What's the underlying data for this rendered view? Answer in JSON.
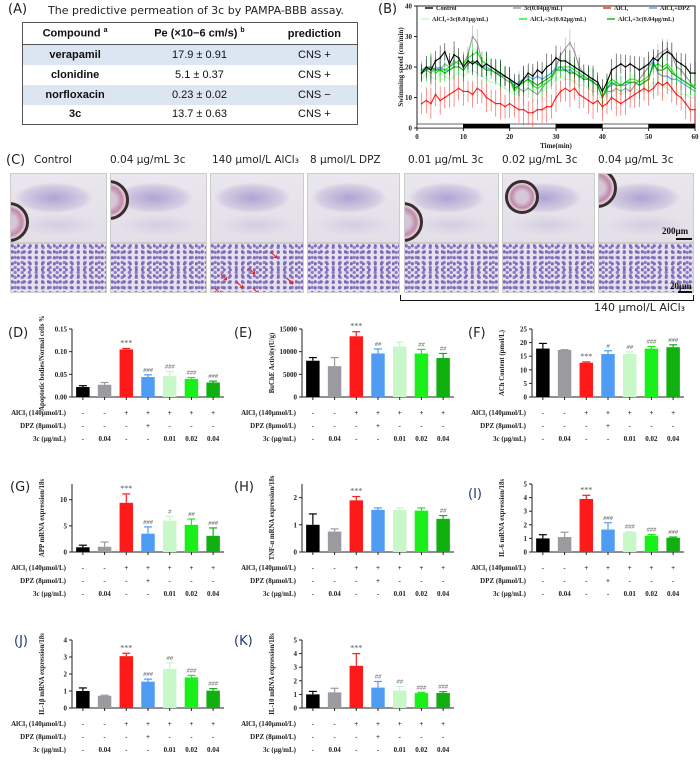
{
  "panelA": {
    "letter": "(A)",
    "title": "The predictive permeation of 3c by PAMPA-BBB assay.",
    "headers": [
      "Compound",
      "Pe (×10−6 cm/s)",
      "prediction"
    ],
    "header_sup": [
      "a",
      "b",
      ""
    ],
    "rows": [
      {
        "compound": "verapamil",
        "pe": "17.9 ± 0.91",
        "prediction": "CNS +"
      },
      {
        "compound": "clonidine",
        "pe": "5.1 ± 0.37",
        "prediction": "CNS +"
      },
      {
        "compound": "norfloxacin",
        "pe": "0.23 ± 0.02",
        "prediction": "CNS −"
      },
      {
        "compound": "3c",
        "pe": "13.7 ± 0.63",
        "prediction": "CNS +"
      }
    ],
    "shade_color": "#dce6f2"
  },
  "panelC": {
    "letter": "(C)",
    "labels": [
      "Control",
      "0.04 µg/mL 3c",
      "140 µmol/L AlCl₃",
      "8 µmol/L DPZ",
      "0.01 µg/mL 3c",
      "0.02 µg/mL 3c",
      "0.04 µg/mL 3c"
    ],
    "scale_top": "200µm",
    "scale_bottom": "20µm",
    "bracket_label": "140 µmol/L AlCl₃"
  },
  "group_colors": [
    "#000000",
    "#9b9b9f",
    "#ff1a1a",
    "#4f9cf5",
    "#c8f7c8",
    "#19f019",
    "#10b010"
  ],
  "treatment_rows": {
    "labels": [
      "AlCl₃ (140µmol/L)",
      "DPZ (8µmol/L)",
      "3c (µg/mL)"
    ],
    "alcl3": [
      "-",
      "-",
      "+",
      "+",
      "+",
      "+",
      "+"
    ],
    "dpz": [
      "-",
      "-",
      "-",
      "+",
      "-",
      "-",
      "-"
    ],
    "c3": [
      "-",
      "0.04",
      "-",
      "-",
      "0.01",
      "0.02",
      "0.04"
    ]
  },
  "chart_data": [
    {
      "panel": "(B)",
      "type": "line",
      "xlabel": "Time(min)",
      "ylabel": "Swimming speed (cm/min)",
      "xlim": [
        0,
        60
      ],
      "ylim": [
        0,
        40
      ],
      "xticks": [
        0,
        10,
        20,
        30,
        40,
        50,
        60
      ],
      "yticks": [
        0,
        10,
        20,
        30,
        40
      ],
      "legend_position": "top",
      "light_dark_bar": [
        "light",
        "dark",
        "light",
        "dark",
        "light",
        "dark"
      ],
      "x": [
        1,
        2,
        3,
        4,
        5,
        6,
        7,
        8,
        9,
        10,
        11,
        12,
        13,
        14,
        15,
        16,
        17,
        18,
        19,
        20,
        21,
        22,
        23,
        24,
        25,
        26,
        27,
        28,
        29,
        30,
        31,
        32,
        33,
        34,
        35,
        36,
        37,
        38,
        39,
        40,
        41,
        42,
        43,
        44,
        45,
        46,
        47,
        48,
        49,
        50,
        51,
        52,
        53,
        54,
        55,
        56,
        57,
        58,
        59,
        60
      ],
      "series": [
        {
          "name": "Control",
          "color": "#000000",
          "values": [
            18,
            20,
            19,
            22,
            23,
            25,
            21,
            24,
            23,
            20,
            22,
            21,
            22,
            20,
            21,
            20,
            19,
            18,
            17,
            16,
            15,
            14,
            16,
            18,
            17,
            19,
            18,
            20,
            21,
            23,
            22,
            22,
            21,
            20,
            19,
            18,
            17,
            16,
            15,
            12,
            15,
            19,
            20,
            21,
            20,
            21,
            20,
            19,
            20,
            21,
            23,
            22,
            24,
            25,
            24,
            22,
            21,
            20,
            18,
            18
          ]
        },
        {
          "name": "3c(0.04µg/mL)",
          "color": "#9b9b9f",
          "values": [
            18,
            19,
            18,
            20,
            19,
            21,
            20,
            22,
            21,
            21,
            24,
            30,
            28,
            22,
            21,
            20,
            19,
            17,
            16,
            15,
            14,
            13,
            12,
            13,
            12,
            11,
            13,
            15,
            16,
            20,
            24,
            26,
            28,
            25,
            20,
            18,
            17,
            15,
            14,
            10,
            12,
            12,
            13,
            12,
            13,
            12,
            14,
            16,
            18,
            20,
            22,
            24,
            25,
            26,
            24,
            20,
            19,
            17,
            15,
            13
          ]
        },
        {
          "name": "AlCl₃",
          "color": "#ff1a1a",
          "values": [
            8,
            9,
            8,
            11,
            9,
            10,
            11,
            12,
            13,
            12,
            12,
            11,
            13,
            12,
            10,
            9,
            8,
            8,
            7,
            8,
            7,
            6,
            6,
            5,
            5,
            6,
            6,
            7,
            7,
            10,
            12,
            13,
            12,
            13,
            11,
            10,
            9,
            8,
            9,
            7,
            8,
            10,
            9,
            8,
            9,
            10,
            11,
            12,
            13,
            12,
            13,
            15,
            14,
            15,
            13,
            11,
            10,
            8,
            6,
            6
          ]
        },
        {
          "name": "AlCl₃+DPZ",
          "color": "#4f9cf5",
          "values": [
            19,
            20,
            20,
            19,
            20,
            19,
            19,
            20,
            20,
            19,
            21,
            22,
            21,
            20,
            20,
            19,
            18,
            18,
            17,
            16,
            14,
            15,
            16,
            17,
            16,
            17,
            16,
            17,
            18,
            20,
            20,
            19,
            19,
            18,
            17,
            17,
            16,
            15,
            14,
            10,
            13,
            14,
            15,
            14,
            14,
            15,
            15,
            14,
            15,
            16,
            22,
            18,
            17,
            17,
            16,
            16,
            15,
            14,
            13,
            12
          ]
        },
        {
          "name": "AlCl₃+3c(0.01µg/mL)",
          "color": "#c8f7c8",
          "values": [
            16,
            18,
            17,
            16,
            18,
            17,
            16,
            17,
            18,
            17,
            18,
            19,
            18,
            17,
            16,
            15,
            15,
            14,
            13,
            12,
            11,
            12,
            13,
            13,
            12,
            13,
            12,
            13,
            14,
            16,
            17,
            16,
            16,
            15,
            14,
            14,
            13,
            12,
            12,
            8,
            11,
            12,
            12,
            11,
            12,
            12,
            13,
            12,
            12,
            13,
            15,
            14,
            14,
            13,
            12,
            12,
            11,
            11,
            10,
            10
          ]
        },
        {
          "name": "AlCl₃+3c(0.02µg/mL)",
          "color": "#19f019",
          "values": [
            19,
            19,
            20,
            18,
            19,
            19,
            20,
            21,
            22,
            21,
            23,
            24,
            25,
            22,
            21,
            20,
            19,
            18,
            17,
            16,
            12,
            14,
            15,
            16,
            14,
            13,
            14,
            15,
            16,
            19,
            20,
            20,
            20,
            19,
            18,
            17,
            16,
            15,
            14,
            10,
            14,
            16,
            15,
            14,
            15,
            16,
            16,
            15,
            16,
            17,
            20,
            21,
            20,
            21,
            19,
            17,
            16,
            15,
            14,
            14
          ]
        },
        {
          "name": "AlCl₃+3c(0.04µg/mL)",
          "color": "#10b010",
          "values": [
            18,
            19,
            20,
            19,
            19,
            18,
            19,
            20,
            20,
            19,
            21,
            22,
            21,
            20,
            19,
            19,
            18,
            17,
            17,
            16,
            13,
            14,
            15,
            16,
            15,
            14,
            15,
            16,
            17,
            19,
            19,
            19,
            18,
            18,
            17,
            16,
            16,
            15,
            14,
            10,
            13,
            15,
            14,
            14,
            15,
            15,
            15,
            14,
            15,
            16,
            21,
            19,
            19,
            20,
            18,
            17,
            16,
            15,
            14,
            13
          ]
        }
      ]
    },
    {
      "panel": "(D)",
      "type": "bar",
      "ylabel": "Apoptotic bodies/Normal cells %",
      "ylim": [
        0,
        0.15
      ],
      "yticks": [
        "0.00",
        "0.05",
        "0.10",
        "0.15"
      ],
      "values": [
        0.022,
        0.027,
        0.105,
        0.044,
        0.046,
        0.04,
        0.032
      ],
      "errors": [
        0.003,
        0.005,
        0.002,
        0.005,
        0.01,
        0.003,
        0.003
      ],
      "annotations": [
        "",
        "",
        "***",
        "###",
        "###",
        "###",
        "###"
      ]
    },
    {
      "panel": "(E)",
      "type": "bar",
      "ylabel": "BuChE Activity(U/g)",
      "ylim": [
        0,
        15000
      ],
      "yticks": [
        "0",
        "5000",
        "10000",
        "15000"
      ],
      "values": [
        8000,
        6800,
        13400,
        9600,
        11100,
        9600,
        8600
      ],
      "errors": [
        700,
        1900,
        1000,
        1000,
        1000,
        900,
        1000
      ],
      "annotations": [
        "",
        "",
        "***",
        "##",
        "",
        "##",
        "##"
      ]
    },
    {
      "panel": "(F)",
      "type": "bar",
      "ylabel": "ACh Content (pmol/L)",
      "ylim": [
        0,
        25
      ],
      "yticks": [
        "0",
        "5",
        "10",
        "15",
        "20",
        "25"
      ],
      "values": [
        17.8,
        17.3,
        12.6,
        15.8,
        15.8,
        17.8,
        18.3
      ],
      "errors": [
        1.9,
        0.1,
        0.3,
        1.2,
        0.8,
        0.8,
        0.9
      ],
      "annotations": [
        "",
        "",
        "***",
        "#",
        "##",
        "###",
        "###"
      ]
    },
    {
      "panel": "(G)",
      "type": "bar",
      "ylabel": "APP mRNA expression/18s",
      "ylim": [
        0,
        13
      ],
      "yticks": [
        "0",
        "5",
        "10"
      ],
      "values": [
        0.9,
        1.0,
        9.4,
        3.5,
        6.0,
        5.2,
        3.1
      ],
      "errors": [
        0.4,
        0.9,
        1.7,
        1.3,
        0.8,
        1.1,
        1.5
      ],
      "annotations": [
        "",
        "",
        "***",
        "###",
        "#",
        "##",
        "###"
      ]
    },
    {
      "panel": "(H)",
      "type": "bar",
      "ylabel": "TNF-α mRNA expression/18s",
      "ylim": [
        0,
        2.5
      ],
      "yticks": [
        "0",
        "1",
        "2"
      ],
      "values": [
        1.0,
        0.75,
        1.9,
        1.55,
        1.55,
        1.52,
        1.22
      ],
      "errors": [
        0.4,
        0.1,
        0.14,
        0.07,
        0.07,
        0.1,
        0.12
      ],
      "annotations": [
        "",
        "",
        "***",
        "",
        "",
        "",
        "##"
      ]
    },
    {
      "panel": "(I)",
      "type": "bar",
      "ylabel": "IL-6 mRNA expression/18s",
      "ylim": [
        0,
        5
      ],
      "yticks": [
        "0",
        "1",
        "2",
        "3",
        "4",
        "5"
      ],
      "values": [
        1.0,
        1.1,
        3.9,
        1.65,
        1.45,
        1.2,
        1.05
      ],
      "errors": [
        0.27,
        0.35,
        0.27,
        0.5,
        0.05,
        0.08,
        0.05
      ],
      "annotations": [
        "",
        "",
        "***",
        "###",
        "###",
        "###",
        "###"
      ]
    },
    {
      "panel": "(J)",
      "type": "bar",
      "ylabel": "IL-1β mRNA expression/18s",
      "ylim": [
        0,
        4
      ],
      "yticks": [
        "0",
        "1",
        "2",
        "3",
        "4"
      ],
      "values": [
        1.0,
        0.72,
        3.05,
        1.55,
        2.3,
        1.8,
        1.02
      ],
      "errors": [
        0.18,
        0.03,
        0.17,
        0.15,
        0.35,
        0.12,
        0.12
      ],
      "annotations": [
        "",
        "",
        "***",
        "###",
        "##",
        "###",
        "###"
      ]
    },
    {
      "panel": "(K)",
      "type": "bar",
      "ylabel": "IL-10 mRNA expression/18s",
      "ylim": [
        0,
        5
      ],
      "yticks": [
        "0",
        "1",
        "2",
        "3",
        "4",
        "5"
      ],
      "values": [
        1.0,
        1.15,
        3.1,
        1.5,
        1.28,
        1.1,
        1.1
      ],
      "errors": [
        0.22,
        0.3,
        0.9,
        0.45,
        0.3,
        0.05,
        0.1
      ],
      "annotations": [
        "",
        "",
        "***",
        "##",
        "##",
        "###",
        "###"
      ]
    }
  ]
}
